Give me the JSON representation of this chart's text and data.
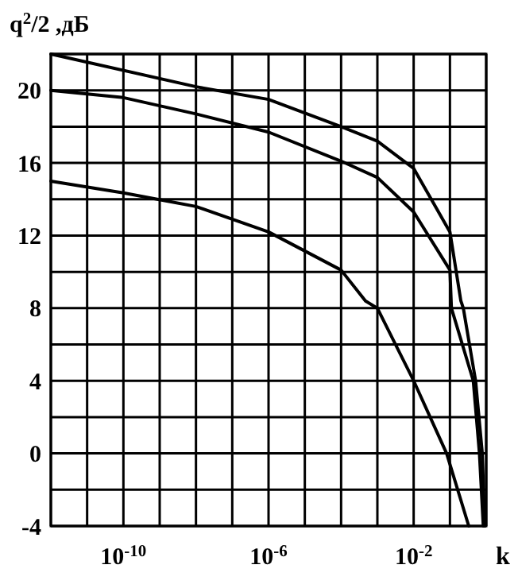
{
  "chart_data": {
    "type": "line",
    "xlabel": "k",
    "ylabel": "q$^{2}$/2 ,дБ",
    "log": "x",
    "grid": true,
    "marker": "none",
    "line_style": "solid",
    "xlim": [
      1e-12,
      1
    ],
    "ylim": [
      -4,
      22
    ],
    "xticks": [
      {
        "value": 1e-12,
        "label": null
      },
      {
        "value": 1e-11,
        "label": null
      },
      {
        "value": 1e-10,
        "label": "10$^{-10}$"
      },
      {
        "value": 1e-09,
        "label": null
      },
      {
        "value": 1e-08,
        "label": null
      },
      {
        "value": 1e-07,
        "label": null
      },
      {
        "value": 1e-06,
        "label": "10$^{-6}$"
      },
      {
        "value": 1e-05,
        "label": null
      },
      {
        "value": 0.0001,
        "label": null
      },
      {
        "value": 0.001,
        "label": null
      },
      {
        "value": 0.01,
        "label": "10$^{-2}$"
      },
      {
        "value": 0.1,
        "label": null
      },
      {
        "value": 1,
        "label": null
      }
    ],
    "yticks": [
      -4,
      {
        "value": -2,
        "label": null
      },
      0,
      {
        "value": 2,
        "label": null
      },
      4,
      {
        "value": 6,
        "label": null
      },
      8,
      {
        "value": 10,
        "label": null
      },
      12,
      {
        "value": 14,
        "label": null
      },
      16,
      {
        "value": 18,
        "label": null
      },
      20,
      {
        "value": 22,
        "label": null
      }
    ],
    "series": [
      {
        "color": "#000000",
        "x": [
          1e-12,
          1e-08,
          1e-06,
          0.0001,
          0.001,
          0.01,
          0.1,
          0.2,
          0.234,
          0.51,
          0.78,
          0.91
        ],
        "values": [
          22,
          20.2,
          19.5,
          18,
          17.2,
          15.7,
          12.2,
          8.4,
          8,
          4,
          0,
          -4
        ]
      },
      {
        "color": "#000000",
        "x": [
          1e-12,
          1e-10,
          1e-08,
          1e-06,
          0.0001,
          0.001,
          0.01,
          0.1,
          0.11,
          0.44,
          0.65,
          0.83
        ],
        "values": [
          20,
          19.6,
          18.7,
          17.7,
          16.1,
          15.2,
          13.3,
          10.1,
          8,
          4,
          0,
          -4
        ]
      },
      {
        "color": "#000000",
        "x": [
          1e-12,
          1e-10,
          1e-08,
          1e-06,
          0.0001,
          0.00047,
          0.001,
          0.01,
          0.081,
          0.33
        ],
        "values": [
          15,
          14.35,
          13.6,
          12.2,
          10.1,
          8.4,
          8,
          4,
          0,
          -4
        ]
      }
    ]
  }
}
